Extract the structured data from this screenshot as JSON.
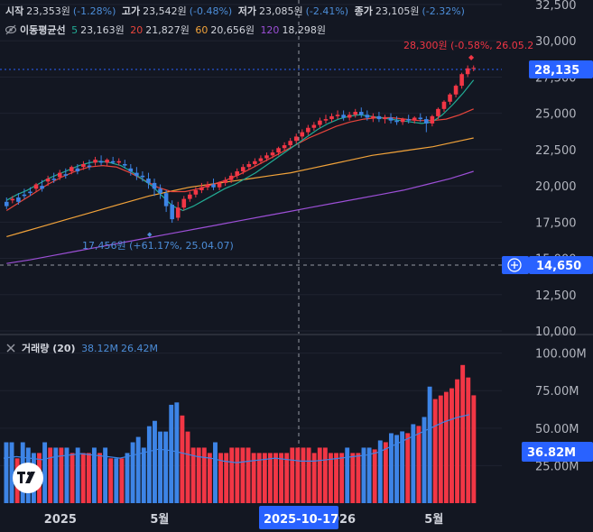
{
  "ohlc_bar": {
    "open_label": "시작",
    "open_value": "23,353원",
    "open_change": "(-1.28%)",
    "high_label": "고가",
    "high_value": "23,542원",
    "high_change": "(-0.48%)",
    "low_label": "저가",
    "low_value": "23,085원",
    "low_change": "(-2.41%)",
    "close_label": "종가",
    "close_value": "23,105원",
    "close_change": "(-2.32%)"
  },
  "ma_bar": {
    "title": "이동평균선",
    "p5": "5",
    "v5": "23,163원",
    "p20": "20",
    "v20": "21,827원",
    "p60": "60",
    "v60": "20,656원",
    "p120": "120",
    "v120": "18,298원"
  },
  "volume_panel": {
    "title": "거래량 (20)",
    "value1": "38.12M",
    "value2": "26.42M"
  },
  "colors": {
    "background": "#131722",
    "up": "#f23645",
    "down": "#3d84e6",
    "ma5": "#22ab94",
    "ma20": "#e8453c",
    "ma60": "#f2a33a",
    "ma120": "#9c4fd6",
    "label_blue": "#2962ff"
  },
  "icons": [
    "eye-icon",
    "close-icon",
    "plus-circle-icon",
    "tradingview-logo-icon"
  ],
  "chart_data": [
    {
      "type": "candlestick",
      "price_axis_ticks": [
        "32,500",
        "30,000",
        "27,500",
        "25,000",
        "22,500",
        "20,000",
        "17,500",
        "15,000",
        "12,500",
        "10,000"
      ],
      "ylim": [
        10000,
        32500
      ],
      "x_tick_labels": [
        "2025",
        "5월",
        "2026",
        "5월"
      ],
      "crosshair_x_label": "2025-10-17",
      "crosshair_y_label": "14,650",
      "last_price_label": "28,135",
      "annotation_high": "28,300원 (-0.58%, 26.05.2",
      "annotation_low": "17,456원 (+61.17%, 25.04.07)",
      "candles": [
        [
          18900,
          19200,
          18600,
          18400
        ],
        [
          19000,
          19300,
          19100,
          18800
        ],
        [
          19200,
          19500,
          18900,
          18700
        ],
        [
          19400,
          19800,
          19300,
          19100
        ],
        [
          19600,
          19900,
          19500,
          19300
        ],
        [
          19800,
          20200,
          20100,
          19600
        ],
        [
          20000,
          20400,
          19800,
          19600
        ],
        [
          20300,
          20700,
          20500,
          20000
        ],
        [
          20500,
          20900,
          20400,
          20200
        ],
        [
          20600,
          21100,
          20900,
          20400
        ],
        [
          20800,
          21200,
          20700,
          20500
        ],
        [
          21000,
          21400,
          21300,
          20800
        ],
        [
          21200,
          21500,
          21000,
          20800
        ],
        [
          21300,
          21700,
          21500,
          21100
        ],
        [
          21400,
          21800,
          21300,
          21100
        ],
        [
          21600,
          22000,
          21800,
          21400
        ],
        [
          21700,
          22100,
          21600,
          21400
        ],
        [
          21600,
          21900,
          21800,
          21400
        ],
        [
          21700,
          22000,
          21600,
          21500
        ],
        [
          21600,
          21900,
          21700,
          21400
        ],
        [
          21500,
          21800,
          21400,
          21200
        ],
        [
          21200,
          21500,
          21000,
          20700
        ],
        [
          20900,
          21300,
          20700,
          20400
        ],
        [
          20700,
          21000,
          20600,
          20300
        ],
        [
          20500,
          20900,
          20200,
          19800
        ],
        [
          20200,
          20500,
          19800,
          19300
        ],
        [
          19800,
          20100,
          19500,
          19100
        ],
        [
          19500,
          19700,
          18600,
          18200
        ],
        [
          18700,
          19000,
          17700,
          17456
        ],
        [
          17800,
          18900,
          18500,
          17600
        ],
        [
          18500,
          19300,
          19100,
          18300
        ],
        [
          19100,
          19600,
          19400,
          18900
        ],
        [
          19400,
          19900,
          19700,
          19200
        ],
        [
          19700,
          20200,
          19900,
          19500
        ],
        [
          19900,
          20300,
          20100,
          19700
        ],
        [
          20100,
          20500,
          19900,
          19700
        ],
        [
          19900,
          20300,
          20200,
          19700
        ],
        [
          20200,
          20600,
          20400,
          20000
        ],
        [
          20400,
          20900,
          20700,
          20200
        ],
        [
          20700,
          21200,
          21000,
          20500
        ],
        [
          21000,
          21500,
          21300,
          20800
        ],
        [
          21300,
          21700,
          21500,
          21100
        ],
        [
          21500,
          21900,
          21700,
          21300
        ],
        [
          21700,
          22100,
          21900,
          21500
        ],
        [
          21900,
          22300,
          22100,
          21700
        ],
        [
          22100,
          22500,
          22300,
          21900
        ],
        [
          22300,
          22700,
          22600,
          22100
        ],
        [
          22600,
          23000,
          22800,
          22400
        ],
        [
          22800,
          23300,
          23100,
          22600
        ],
        [
          23100,
          23600,
          23400,
          22900
        ],
        [
          23400,
          23900,
          23700,
          23200
        ],
        [
          23700,
          24200,
          24000,
          23500
        ],
        [
          24000,
          24400,
          24200,
          23800
        ],
        [
          24200,
          24700,
          24500,
          24000
        ],
        [
          24500,
          24900,
          24600,
          24300
        ],
        [
          24600,
          25000,
          24800,
          24400
        ],
        [
          24800,
          25200,
          24900,
          24600
        ],
        [
          24900,
          25200,
          24700,
          24500
        ],
        [
          24700,
          25100,
          24900,
          24500
        ],
        [
          24900,
          25300,
          25100,
          24700
        ],
        [
          25100,
          25400,
          24900,
          24700
        ],
        [
          24900,
          25200,
          24700,
          24500
        ],
        [
          24700,
          25000,
          24800,
          24400
        ],
        [
          24800,
          25100,
          24600,
          24400
        ],
        [
          24600,
          24900,
          24700,
          24300
        ],
        [
          24700,
          25000,
          24500,
          24300
        ],
        [
          24500,
          24800,
          24400,
          24200
        ],
        [
          24400,
          24700,
          24600,
          24200
        ],
        [
          24600,
          24900,
          24500,
          24300
        ],
        [
          24500,
          24800,
          24700,
          24300
        ],
        [
          24700,
          25000,
          24600,
          24400
        ],
        [
          24600,
          24800,
          24300,
          23700
        ],
        [
          24300,
          24900,
          24800,
          24100
        ],
        [
          24800,
          25400,
          25300,
          24600
        ],
        [
          25300,
          25900,
          25800,
          25100
        ],
        [
          25800,
          26400,
          26300,
          25600
        ],
        [
          26300,
          27000,
          26900,
          26100
        ],
        [
          26900,
          27800,
          27700,
          26700
        ],
        [
          27700,
          28300,
          28100,
          27500
        ],
        [
          28100,
          28300,
          28135,
          27900
        ]
      ],
      "ma5": [
        19000,
        19400,
        19700,
        20100,
        20500,
        20800,
        21100,
        21400,
        21600,
        21700,
        21600,
        21400,
        21000,
        20500,
        20000,
        19300,
        18600,
        18300,
        18600,
        19000,
        19400,
        19800,
        20100,
        20500,
        20900,
        21400,
        21900,
        22400,
        22900,
        23400,
        23900,
        24300,
        24600,
        24800,
        24900,
        24800,
        24700,
        24600,
        24500,
        24400,
        24300,
        24400,
        24900,
        25600,
        26400,
        27300
      ],
      "ma20": [
        18300,
        18900,
        19500,
        20100,
        20600,
        21000,
        21300,
        21400,
        21300,
        20900,
        20400,
        19900,
        19600,
        19600,
        19800,
        20100,
        20400,
        20800,
        21300,
        21800,
        22300,
        22800,
        23300,
        23700,
        24100,
        24400,
        24600,
        24700,
        24700,
        24600,
        24500,
        24500,
        24600,
        24900,
        25300
      ],
      "ma60": [
        16500,
        16900,
        17300,
        17700,
        18100,
        18500,
        18900,
        19300,
        19600,
        19900,
        20100,
        20300,
        20500,
        20700,
        20900,
        21200,
        21500,
        21800,
        22100,
        22300,
        22500,
        22700,
        23000,
        23300
      ],
      "ma120": [
        14650,
        14900,
        15200,
        15500,
        15800,
        16100,
        16400,
        16700,
        17000,
        17300,
        17600,
        17900,
        18200,
        18500,
        18800,
        19100,
        19400,
        19700,
        20100,
        20500,
        21000
      ],
      "volume_axis_ticks": [
        "100.00M",
        "75.00M",
        "50.00M",
        "25.00M"
      ],
      "volume_last_label": "36.82M",
      "volume_ma20": [
        30,
        31,
        30,
        29,
        31,
        32,
        33,
        32,
        31,
        30,
        32,
        34,
        36,
        35,
        33,
        31,
        30,
        28,
        27,
        28,
        29,
        30,
        29,
        28,
        28,
        29,
        30,
        31,
        32,
        34,
        38,
        42,
        46,
        50,
        54,
        57,
        59
      ]
    }
  ]
}
